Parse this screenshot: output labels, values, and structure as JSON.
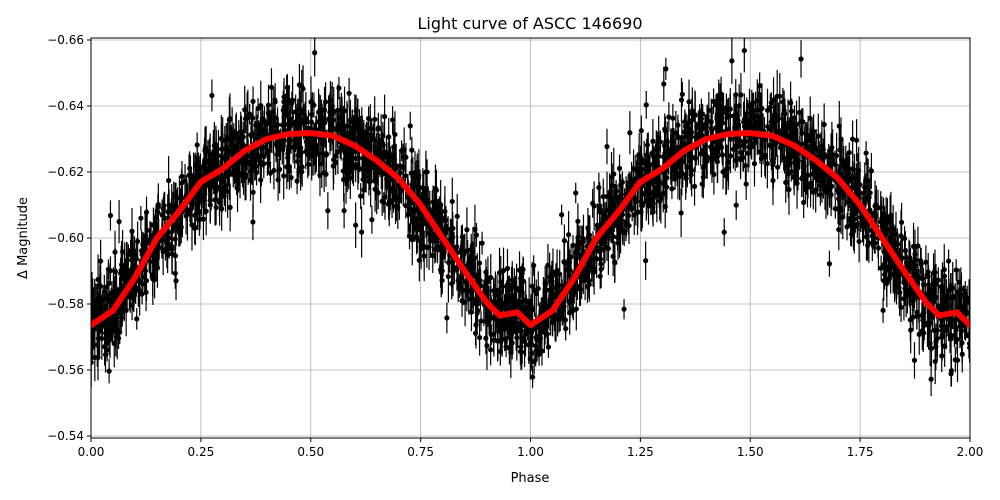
{
  "chart_data": {
    "type": "scatter",
    "title": "Light curve of ASCC 146690",
    "xlabel": "Phase",
    "ylabel": "Δ Magnitude",
    "xlim": [
      0,
      2
    ],
    "ylim": [
      -0.6606,
      -0.5394
    ],
    "y_inverted": true,
    "grid": true,
    "xticks": [
      "0.00",
      "0.25",
      "0.50",
      "0.75",
      "1.00",
      "1.25",
      "1.50",
      "1.75",
      "2.00"
    ],
    "xtick_values": [
      0,
      0.25,
      0.5,
      0.75,
      1.0,
      1.25,
      1.5,
      1.75,
      2.0
    ],
    "yticks": [
      "−0.66",
      "−0.64",
      "−0.62",
      "−0.60",
      "−0.58",
      "−0.56",
      "−0.54"
    ],
    "ytick_values": [
      -0.66,
      -0.64,
      -0.62,
      -0.6,
      -0.58,
      -0.56,
      -0.54
    ],
    "series": [
      {
        "kind": "errorbar-points",
        "color": "#000000",
        "description_of_spread": "dense band roughly ±0.02 mag around the binned curve with scattered outliers"
      },
      {
        "kind": "binned-mean-line",
        "color": "#ff0000",
        "x": [
          0,
          0.05,
          0.1,
          0.15,
          0.2,
          0.25,
          0.3,
          0.35,
          0.4,
          0.45,
          0.5,
          0.55,
          0.6,
          0.65,
          0.7,
          0.75,
          0.8,
          0.85,
          0.9,
          0.93,
          0.95,
          0.97,
          1.0,
          1.05,
          1.1,
          1.15,
          1.2,
          1.25,
          1.3,
          1.35,
          1.4,
          1.45,
          1.5,
          1.55,
          1.6,
          1.65,
          1.7,
          1.75,
          1.8,
          1.85,
          1.9,
          1.93,
          1.95,
          1.97,
          2.0
        ],
        "y": [
          -0.5736,
          -0.578,
          -0.588,
          -0.6,
          -0.608,
          -0.617,
          -0.621,
          -0.6265,
          -0.63,
          -0.6315,
          -0.6318,
          -0.631,
          -0.628,
          -0.6235,
          -0.618,
          -0.61,
          -0.6,
          -0.59,
          -0.5805,
          -0.5765,
          -0.577,
          -0.5775,
          -0.5736,
          -0.578,
          -0.588,
          -0.6,
          -0.608,
          -0.617,
          -0.621,
          -0.6265,
          -0.63,
          -0.6315,
          -0.6318,
          -0.631,
          -0.628,
          -0.6235,
          -0.618,
          -0.61,
          -0.6,
          -0.59,
          -0.5805,
          -0.5765,
          -0.577,
          -0.5775,
          -0.5736
        ]
      }
    ]
  }
}
